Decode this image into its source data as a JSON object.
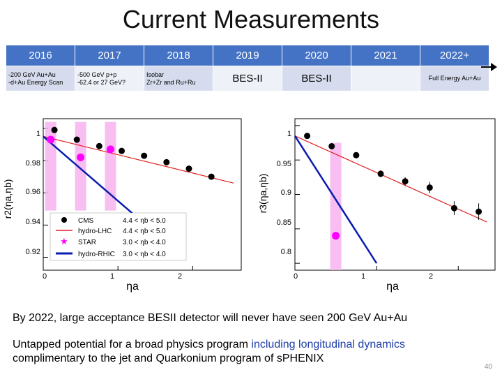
{
  "slide": {
    "title": "Current Measurements",
    "page_number": "40"
  },
  "timeline": {
    "years": [
      "2016",
      "2017",
      "2018",
      "2019",
      "2020",
      "2021",
      "2022+"
    ],
    "events": [
      [
        "-200 GeV Au+Au",
        "-d+Au Energy Scan"
      ],
      [
        "-500 GeV p+p",
        "-62.4 or 27 GeV?"
      ],
      [
        "Isobar",
        " Zr+Zr and Ru+Ru"
      ],
      [
        "BES-II"
      ],
      [
        "BES-II"
      ],
      [],
      [
        "Full Energy Au+Au"
      ]
    ],
    "colors": {
      "header": "#4472c4",
      "row": "#d6dced",
      "row_alt": "#eef1f8"
    }
  },
  "left_plot": {
    "ylabel": "r2(ηa,ηb)",
    "xlabel": "ηa",
    "xticks": [
      "0",
      "1",
      "2"
    ],
    "yticks": [
      "1",
      "0.98",
      "0.96",
      "0.94",
      "0.92"
    ],
    "legend": [
      {
        "label": "CMS",
        "range": "4.4 < ηb < 5.0",
        "marker": "black-circle"
      },
      {
        "label": "hydro-LHC",
        "range": "4.4 < ηb < 5.0",
        "marker": "red-line"
      },
      {
        "label": "STAR",
        "range": "3.0 < ηb < 4.0",
        "marker": "magenta-star"
      },
      {
        "label": "hydro-RHIC",
        "range": "3.0 < ηb < 4.0",
        "marker": "blue-line"
      }
    ]
  },
  "right_plot": {
    "ylabel": "r3(ηa,ηb)",
    "xlabel": "ηa",
    "xticks": [
      "0",
      "1",
      "2"
    ],
    "yticks": [
      "1",
      "0.95",
      "0.9",
      "0.85",
      "0.8"
    ]
  },
  "chart_data": [
    {
      "type": "scatter",
      "xlim": [
        0,
        2.65
      ],
      "ylim": [
        0.912,
        1.006
      ],
      "series": [
        {
          "name": "CMS",
          "color": "#000000",
          "x": [
            0.15,
            0.45,
            0.75,
            1.05,
            1.35,
            1.65,
            1.95,
            2.25
          ],
          "y": [
            0.999,
            0.993,
            0.989,
            0.986,
            0.983,
            0.979,
            0.975,
            0.97
          ]
        },
        {
          "name": "hydro-LHC",
          "color": "#e02020",
          "x": [
            0.0,
            2.55
          ],
          "y": [
            0.995,
            0.966
          ]
        },
        {
          "name": "STAR",
          "color": "#ff00ff",
          "x": [
            0.1,
            0.5,
            0.9
          ],
          "y": [
            0.993,
            0.982,
            0.987
          ],
          "band_low": [
            0.949,
            0.949,
            0.949
          ],
          "band_high": [
            1.004,
            1.004,
            1.004
          ]
        },
        {
          "name": "hydro-RHIC",
          "color": "#0a1bb0",
          "x": [
            0.0,
            1.3
          ],
          "y": [
            0.995,
            0.943
          ]
        }
      ]
    },
    {
      "type": "scatter",
      "xlim": [
        0,
        2.45
      ],
      "ylim": [
        0.79,
        1.01
      ],
      "series": [
        {
          "name": "CMS",
          "color": "#000000",
          "x": [
            0.15,
            0.45,
            0.75,
            1.05,
            1.35,
            1.65,
            1.95,
            2.25
          ],
          "y": [
            0.985,
            0.97,
            0.957,
            0.93,
            0.919,
            0.91,
            0.88,
            0.875
          ],
          "err": [
            0.003,
            0.004,
            0.004,
            0.005,
            0.006,
            0.008,
            0.01,
            0.012
          ]
        },
        {
          "name": "hydro-LHC",
          "color": "#e02020",
          "x": [
            0.0,
            2.35
          ],
          "y": [
            0.985,
            0.86
          ]
        },
        {
          "name": "STAR",
          "color": "#ff00ff",
          "x": [
            0.5
          ],
          "y": [
            0.84
          ],
          "band_low": [
            0.79
          ],
          "band_high": [
            0.975
          ]
        },
        {
          "name": "hydro-RHIC",
          "color": "#0a1bb0",
          "x": [
            0.0,
            1.0
          ],
          "y": [
            0.985,
            0.8
          ]
        }
      ]
    }
  ],
  "captions": {
    "line1": "By 2022, large acceptance BESII detector will never have seen 200 GeV Au+Au",
    "line2_a": "Untapped potential for a broad physics program ",
    "line2_highlight": "including longitudinal dynamics",
    "line3": "complimentary to the jet and Quarkonium program of sPHENIX"
  }
}
